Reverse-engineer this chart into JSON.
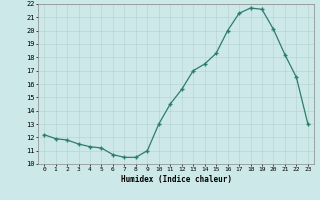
{
  "x": [
    0,
    1,
    2,
    3,
    4,
    5,
    6,
    7,
    8,
    9,
    10,
    11,
    12,
    13,
    14,
    15,
    16,
    17,
    18,
    19,
    20,
    21,
    22,
    23
  ],
  "y": [
    12.2,
    11.9,
    11.8,
    11.5,
    11.3,
    11.2,
    10.7,
    10.5,
    10.5,
    11.0,
    13.0,
    14.5,
    15.6,
    17.0,
    17.5,
    18.3,
    20.0,
    21.3,
    21.7,
    21.6,
    20.1,
    18.2,
    16.5,
    13.0
  ],
  "xlabel": "Humidex (Indice chaleur)",
  "ylim": [
    10,
    22
  ],
  "yticks": [
    10,
    11,
    12,
    13,
    14,
    15,
    16,
    17,
    18,
    19,
    20,
    21,
    22
  ],
  "xticks": [
    0,
    1,
    2,
    3,
    4,
    5,
    6,
    7,
    8,
    9,
    10,
    11,
    12,
    13,
    14,
    15,
    16,
    17,
    18,
    19,
    20,
    21,
    22,
    23
  ],
  "line_color": "#2d7d6e",
  "marker": "+",
  "bg_color": "#cce8e8",
  "grid_color": "#b8d4d4",
  "text_color": "#000000"
}
